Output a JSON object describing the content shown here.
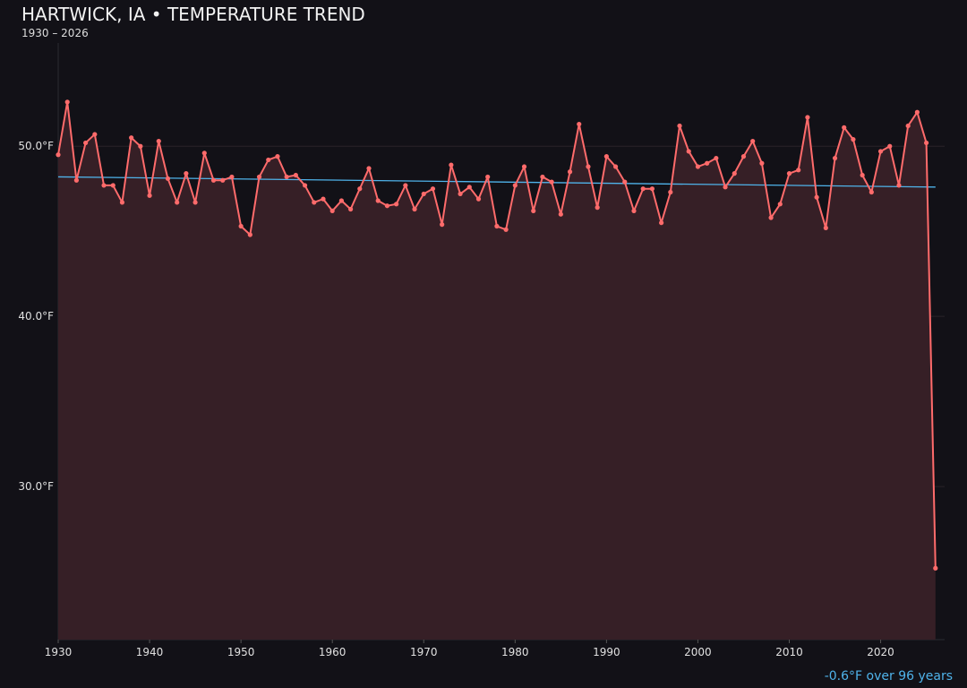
{
  "chart_data": {
    "type": "line",
    "title": "HARTWICK, IA • TEMPERATURE TREND",
    "subtitle": "1930 – 2026",
    "annotation": "-0.6°F over 96 years",
    "xlabel": "",
    "ylabel": "",
    "xlim": [
      1930,
      2027
    ],
    "ylim": [
      21,
      56.7
    ],
    "x_ticks": [
      1930,
      1940,
      1950,
      1960,
      1970,
      1980,
      1990,
      2000,
      2010,
      2020
    ],
    "y_ticks": [
      {
        "value": 30,
        "label": "30.0°F"
      },
      {
        "value": 40,
        "label": "40.0°F"
      },
      {
        "value": 50,
        "label": "50.0°F"
      }
    ],
    "grid": "horizontal",
    "colors": {
      "series": "#ff6b6b",
      "fill": "#361f26",
      "trend": "#4fb3ea",
      "background": "#121117"
    },
    "series": [
      {
        "x": [
          1930,
          1931,
          1932,
          1933,
          1934,
          1935,
          1936,
          1937,
          1938,
          1939,
          1940,
          1941,
          1942,
          1943,
          1944,
          1945,
          1946,
          1947,
          1948,
          1949,
          1950,
          1951,
          1952,
          1953,
          1954,
          1955,
          1956,
          1957,
          1958,
          1959,
          1960,
          1961,
          1962,
          1963,
          1964,
          1965,
          1966,
          1967,
          1968,
          1969,
          1970,
          1971,
          1972,
          1973,
          1974,
          1975,
          1976,
          1977,
          1978,
          1979,
          1980,
          1981,
          1982,
          1983,
          1984,
          1985,
          1986,
          1987,
          1988,
          1989,
          1990,
          1991,
          1992,
          1993,
          1994,
          1995,
          1996,
          1997,
          1998,
          1999,
          2000,
          2001,
          2002,
          2003,
          2004,
          2005,
          2006,
          2007,
          2008,
          2009,
          2010,
          2011,
          2012,
          2013,
          2014,
          2015,
          2016,
          2017,
          2018,
          2019,
          2020,
          2021,
          2022,
          2023,
          2024,
          2025,
          2026
        ],
        "values": [
          49.5,
          52.6,
          48.0,
          50.2,
          50.7,
          47.7,
          47.7,
          46.7,
          50.5,
          50.0,
          47.1,
          50.3,
          48.1,
          46.7,
          48.4,
          46.7,
          49.6,
          48.0,
          48.0,
          48.2,
          45.3,
          44.8,
          48.2,
          49.2,
          49.4,
          48.2,
          48.3,
          47.7,
          46.7,
          46.9,
          46.2,
          46.8,
          46.3,
          47.5,
          48.7,
          46.8,
          46.5,
          46.6,
          47.7,
          46.3,
          47.2,
          47.5,
          45.4,
          48.9,
          47.2,
          47.6,
          46.9,
          48.2,
          45.3,
          45.1,
          47.7,
          48.8,
          46.2,
          48.2,
          47.9,
          46.0,
          48.5,
          51.3,
          48.8,
          46.4,
          49.4,
          48.8,
          47.9,
          46.2,
          47.5,
          47.5,
          45.5,
          47.3,
          51.2,
          49.7,
          48.8,
          49.0,
          49.3,
          47.6,
          48.4,
          49.4,
          50.3,
          49.0,
          45.8,
          46.6,
          48.4,
          48.6,
          51.7,
          47.0,
          45.2,
          49.3,
          51.1,
          50.4,
          48.3,
          47.3,
          49.7,
          50.0,
          47.7,
          51.2,
          52.0,
          50.2,
          25.2
        ]
      }
    ],
    "trend_line": {
      "x": [
        1930,
        2026
      ],
      "values": [
        48.2,
        47.6
      ]
    }
  }
}
